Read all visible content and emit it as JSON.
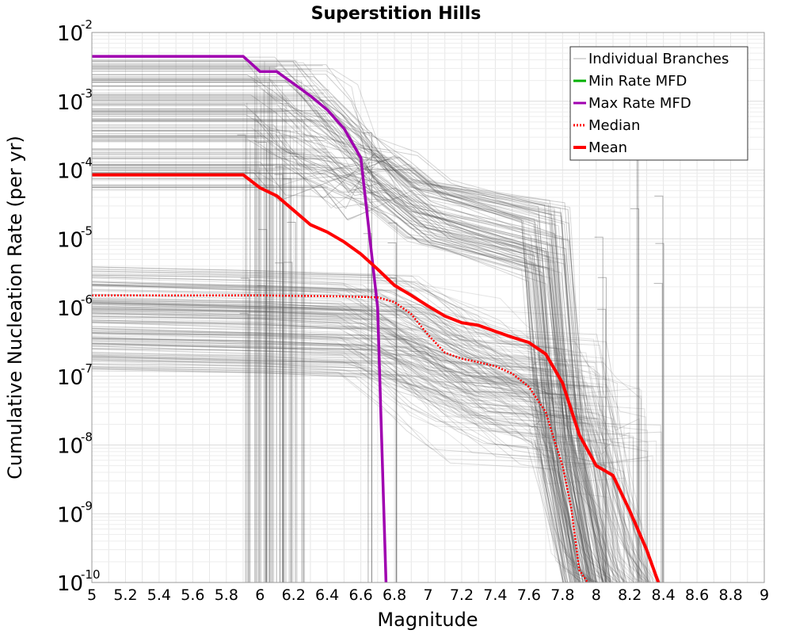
{
  "chart_data": {
    "type": "line",
    "title": "Superstition Hills",
    "xlabel": "Magnitude",
    "ylabel": "Cumulative Nucleation Rate (per yr)",
    "xlim": [
      5,
      9
    ],
    "ylim": [
      1e-10,
      0.01
    ],
    "y_scale": "log",
    "grid": true,
    "legend_position": "top-right",
    "x_ticks": [
      "5",
      "5.2",
      "5.4",
      "5.6",
      "5.8",
      "6",
      "6.2",
      "6.4",
      "6.6",
      "6.8",
      "7",
      "7.2",
      "7.4",
      "7.6",
      "7.8",
      "8",
      "8.2",
      "8.4",
      "8.6",
      "8.8",
      "9"
    ],
    "y_ticks": [
      {
        "value": 1e-10,
        "base": "10",
        "exp": "-10"
      },
      {
        "value": 1e-09,
        "base": "10",
        "exp": "-9"
      },
      {
        "value": 1e-08,
        "base": "10",
        "exp": "-8"
      },
      {
        "value": 1e-07,
        "base": "10",
        "exp": "-7"
      },
      {
        "value": 1e-06,
        "base": "10",
        "exp": "-6"
      },
      {
        "value": 1e-05,
        "base": "10",
        "exp": "-5"
      },
      {
        "value": 0.0001,
        "base": "10",
        "exp": "-4"
      },
      {
        "value": 0.001,
        "base": "10",
        "exp": "-3"
      },
      {
        "value": 0.01,
        "base": "10",
        "exp": "-2"
      }
    ],
    "legend": [
      {
        "name": "Individual Branches",
        "color": "#b0b0b0",
        "style": "solid",
        "width": 1
      },
      {
        "name": "Min Rate MFD",
        "color": "#00b000",
        "style": "solid",
        "width": 3
      },
      {
        "name": "Max Rate MFD",
        "color": "#a000b0",
        "style": "solid",
        "width": 3
      },
      {
        "name": "Median",
        "color": "#ff0000",
        "style": "dotted",
        "width": 3
      },
      {
        "name": "Mean",
        "color": "#ff0000",
        "style": "solid",
        "width": 4
      }
    ],
    "series": [
      {
        "name": "Max Rate MFD",
        "color": "#a000b0",
        "width": 3.5,
        "style": "solid",
        "x": [
          5.0,
          5.9,
          5.95,
          6.0,
          6.05,
          6.1,
          6.15,
          6.2,
          6.3,
          6.4,
          6.5,
          6.6,
          6.7,
          6.75
        ],
        "y": [
          0.0045,
          0.0045,
          0.0035,
          0.0027,
          0.0027,
          0.0027,
          0.0022,
          0.0018,
          0.0012,
          0.00075,
          0.0004,
          0.00015,
          1e-06,
          1e-10
        ]
      },
      {
        "name": "Median",
        "color": "#ff0000",
        "width": 2.5,
        "style": "dotted",
        "x": [
          5.0,
          5.5,
          6.0,
          6.5,
          6.7,
          6.8,
          6.9,
          7.0,
          7.1,
          7.2,
          7.3,
          7.4,
          7.5,
          7.6,
          7.7,
          7.75,
          7.8,
          7.85,
          7.9,
          7.95
        ],
        "y": [
          1.5e-06,
          1.5e-06,
          1.5e-06,
          1.45e-06,
          1.4e-06,
          1.2e-06,
          8e-07,
          4e-07,
          2.2e-07,
          1.8e-07,
          1.6e-07,
          1.4e-07,
          1.1e-07,
          7e-08,
          3e-08,
          1.2e-08,
          5e-09,
          1.3e-09,
          1.5e-10,
          1e-10
        ]
      },
      {
        "name": "Mean",
        "color": "#ff0000",
        "width": 4,
        "style": "solid",
        "x": [
          5.0,
          5.9,
          6.0,
          6.1,
          6.2,
          6.3,
          6.4,
          6.5,
          6.6,
          6.7,
          6.8,
          6.9,
          7.0,
          7.1,
          7.2,
          7.3,
          7.4,
          7.5,
          7.6,
          7.7,
          7.8,
          7.9,
          8.0,
          8.1,
          8.2,
          8.3,
          8.37
        ],
        "y": [
          8.5e-05,
          8.5e-05,
          5.5e-05,
          4.2e-05,
          2.6e-05,
          1.6e-05,
          1.25e-05,
          9e-06,
          6e-06,
          3.6e-06,
          2.1e-06,
          1.5e-06,
          1.05e-06,
          7.5e-07,
          6e-07,
          5.5e-07,
          4.5e-07,
          3.7e-07,
          3.1e-07,
          2.1e-07,
          8e-08,
          1.4e-08,
          5e-09,
          3.6e-09,
          1.1e-09,
          3e-10,
          1e-10
        ]
      }
    ]
  }
}
